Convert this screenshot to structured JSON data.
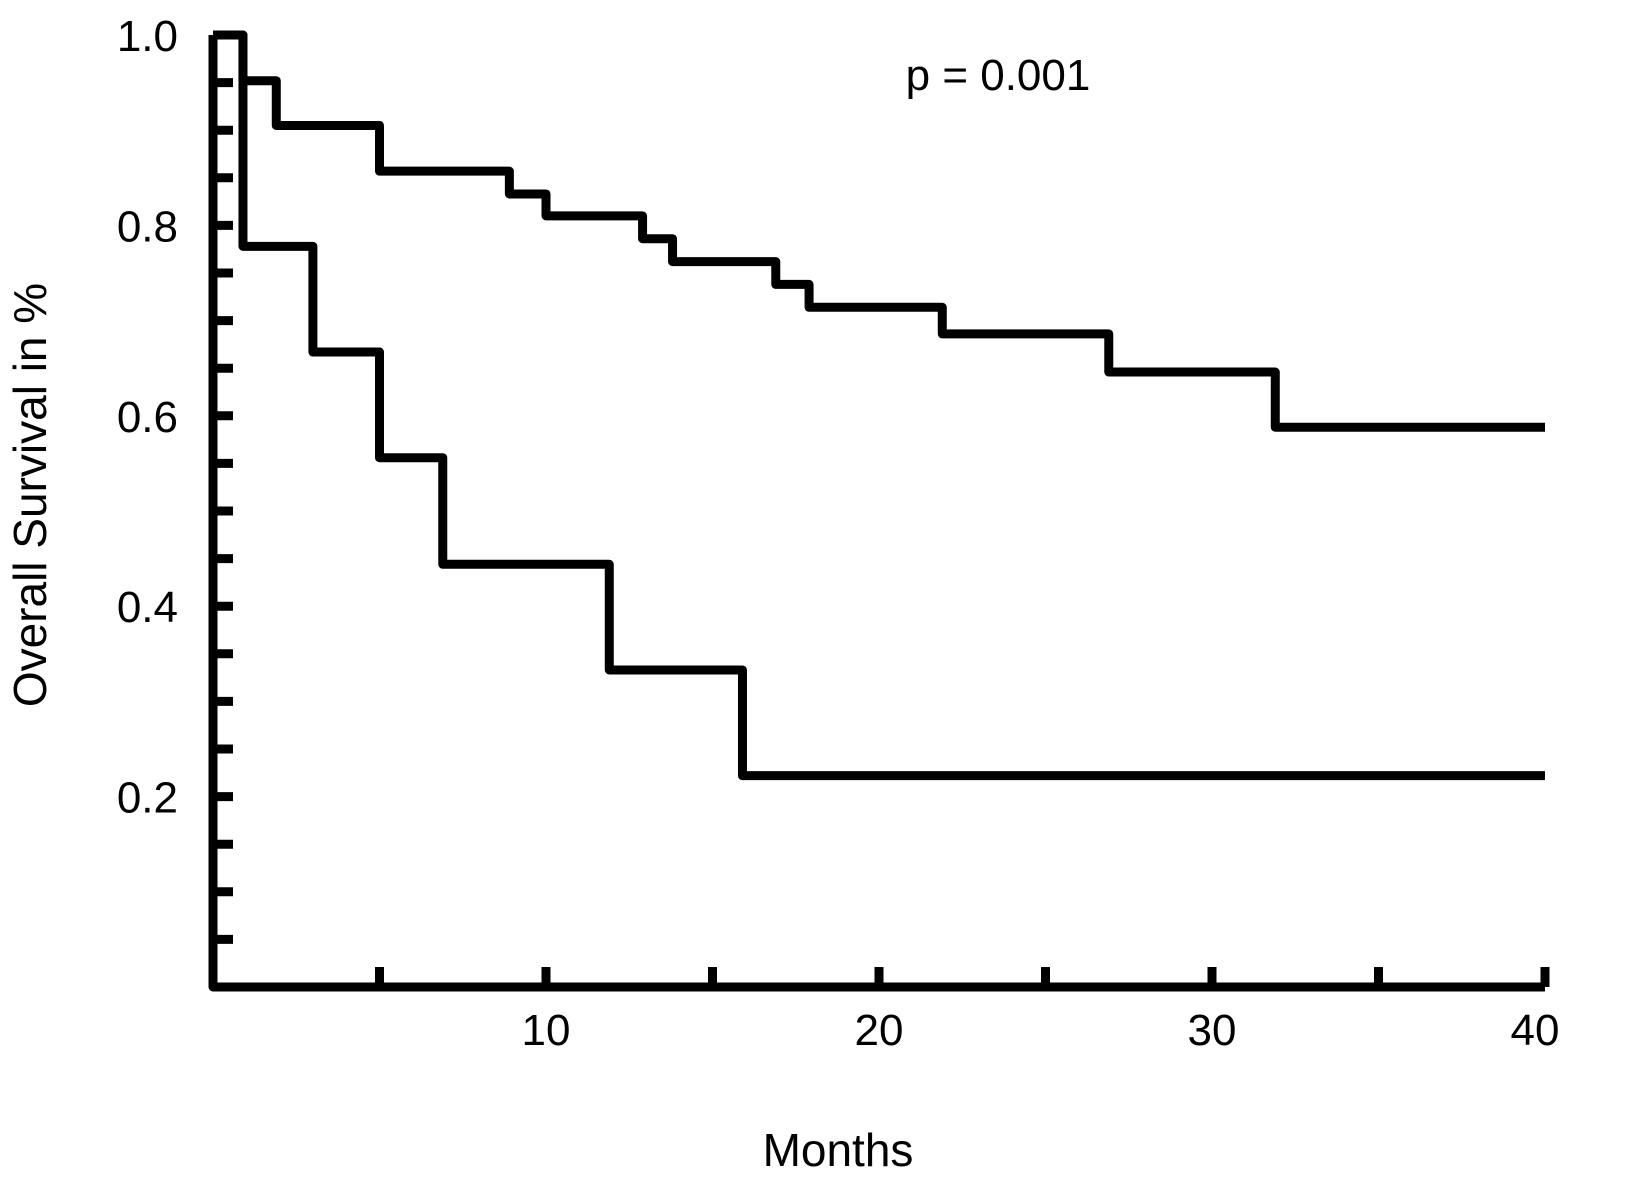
{
  "chart_data": {
    "type": "line",
    "subtype": "kaplan-meier step",
    "title": "",
    "xlabel": "Months",
    "ylabel": "Overall Survival in %",
    "xlim": [
      0,
      40
    ],
    "ylim": [
      0,
      1.0
    ],
    "xticks": [
      10,
      20,
      30,
      40
    ],
    "xtick_labels": [
      "10",
      "20",
      "30",
      "40"
    ],
    "xminor_step": 5,
    "yticks": [
      0.2,
      0.4,
      0.6,
      0.8,
      1.0
    ],
    "ytick_labels": [
      "0.2",
      "0.4",
      "0.6",
      "0.8",
      "1.0"
    ],
    "yminor_step": 0.05,
    "grid": false,
    "annotation": "p = 0.001",
    "line_color": "#000000",
    "series": [
      {
        "name": "upper curve",
        "steps": [
          [
            0,
            1.0
          ],
          [
            0.9,
            0.952
          ],
          [
            1.9,
            0.905
          ],
          [
            5,
            0.857
          ],
          [
            8.9,
            0.833
          ],
          [
            10,
            0.81
          ],
          [
            12.9,
            0.786
          ],
          [
            13.8,
            0.762
          ],
          [
            16.9,
            0.738
          ],
          [
            17.9,
            0.714
          ],
          [
            21.9,
            0.686
          ],
          [
            26.9,
            0.646
          ],
          [
            31.9,
            0.588
          ]
        ],
        "end": 40
      },
      {
        "name": "lower curve",
        "steps": [
          [
            0,
            1.0
          ],
          [
            0.9,
            0.778
          ],
          [
            3,
            0.667
          ],
          [
            5,
            0.556
          ],
          [
            6.9,
            0.444
          ],
          [
            11.9,
            0.333
          ],
          [
            15.9,
            0.222
          ]
        ],
        "end": 40
      }
    ]
  }
}
